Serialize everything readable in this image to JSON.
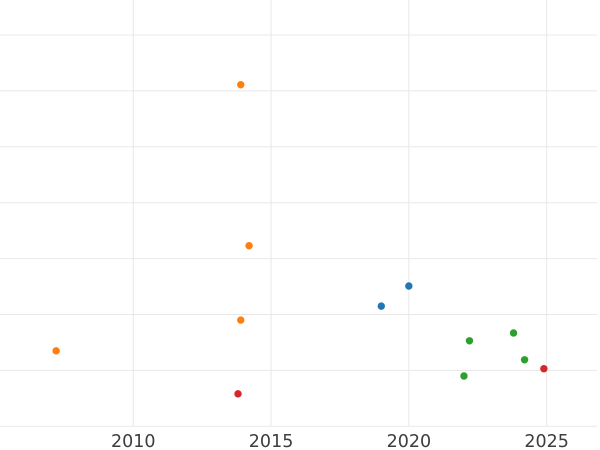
{
  "chart_data": {
    "type": "scatter",
    "title": "",
    "xlabel": "",
    "ylabel": "",
    "grid": true,
    "grid_color": "#e8e8e8",
    "background_color": "#ffffff",
    "tick_label_color": "#3d3d3d",
    "x_axis": {
      "tick_labels": [
        "2010",
        "2015",
        "2020",
        "2025"
      ],
      "tick_years": [
        2010,
        2015,
        2020,
        2025
      ]
    },
    "y_axis": {
      "tick_labels": [],
      "tick_labels_visible": false,
      "visible_gridlines": 8,
      "unit": "gridline-spacings above bottom visible gridline (axis labels cropped out of frame)"
    },
    "series": [
      {
        "name": "orange-series",
        "color": "#ff7f0e",
        "points": [
          {
            "year": 2013.9,
            "y_grid_units": 6.11
          },
          {
            "year": 2014.2,
            "y_grid_units": 3.23
          },
          {
            "year": 2013.9,
            "y_grid_units": 1.9
          },
          {
            "year": 2007.2,
            "y_grid_units": 1.35
          }
        ]
      },
      {
        "name": "blue-series",
        "color": "#1f77b4",
        "points": [
          {
            "year": 2019.0,
            "y_grid_units": 2.15
          },
          {
            "year": 2020.0,
            "y_grid_units": 2.51
          }
        ]
      },
      {
        "name": "green-series",
        "color": "#2ca02c",
        "points": [
          {
            "year": 2022.0,
            "y_grid_units": 0.9
          },
          {
            "year": 2022.2,
            "y_grid_units": 1.53
          },
          {
            "year": 2023.8,
            "y_grid_units": 1.67
          },
          {
            "year": 2024.2,
            "y_grid_units": 1.19
          }
        ]
      },
      {
        "name": "red-series",
        "color": "#d62728",
        "points": [
          {
            "year": 2013.8,
            "y_grid_units": 0.58
          },
          {
            "year": 2024.9,
            "y_grid_units": 1.03
          }
        ]
      }
    ]
  }
}
